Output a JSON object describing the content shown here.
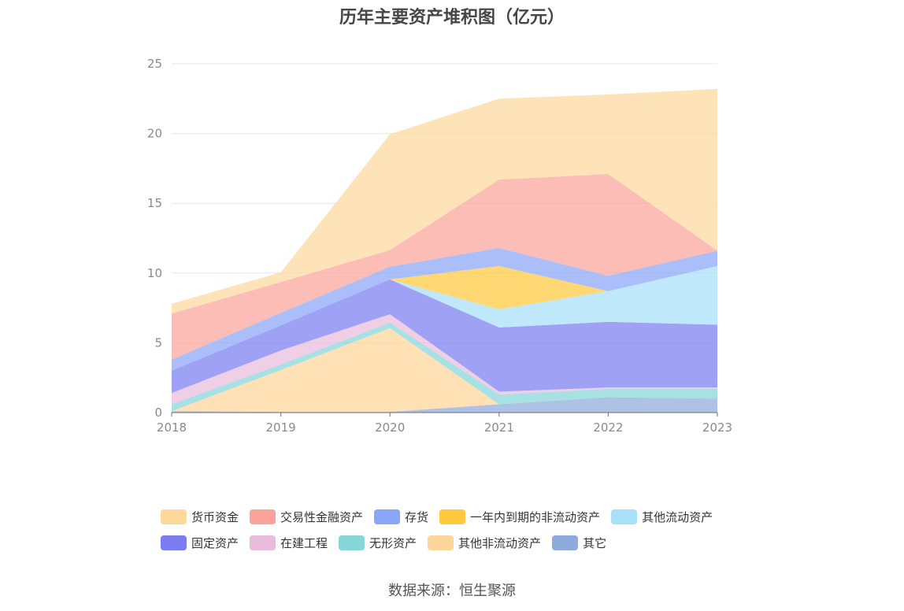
{
  "chart_data": {
    "type": "area",
    "stacked": true,
    "title": "历年主要资产堆积图（亿元）",
    "x": [
      "2018",
      "2019",
      "2020",
      "2021",
      "2022",
      "2023"
    ],
    "ylim": [
      0,
      25
    ],
    "yticks": [
      0,
      5,
      10,
      15,
      20,
      25
    ],
    "grid": true,
    "legend_position": "bottom",
    "series": [
      {
        "name": "其它",
        "color": "#8faadc",
        "values": [
          0.1,
          0.05,
          0.05,
          0.6,
          1.1,
          1.0
        ]
      },
      {
        "name": "其他非流动资产",
        "color": "#ffd699",
        "values": [
          0.0,
          3.0,
          6.0,
          0.0,
          0.0,
          0.0
        ]
      },
      {
        "name": "无形资产",
        "color": "#86d5d8",
        "values": [
          0.5,
          0.4,
          0.4,
          0.7,
          0.6,
          0.7
        ]
      },
      {
        "name": "在建工程",
        "color": "#e9bcdc",
        "values": [
          0.8,
          1.0,
          0.6,
          0.2,
          0.1,
          0.1
        ]
      },
      {
        "name": "固定资产",
        "color": "#7a7ef0",
        "values": [
          1.6,
          1.8,
          2.5,
          4.6,
          4.7,
          4.5
        ]
      },
      {
        "name": "其他流动资产",
        "color": "#a8dff9",
        "values": [
          0.0,
          0.0,
          0.0,
          1.3,
          2.2,
          4.2
        ]
      },
      {
        "name": "一年内到期的非流动资产",
        "color": "#ffc83d",
        "values": [
          0.0,
          0.0,
          0.0,
          3.1,
          0.0,
          0.0
        ]
      },
      {
        "name": "存货",
        "color": "#89a6f8",
        "values": [
          0.8,
          0.9,
          0.9,
          1.3,
          1.1,
          1.1
        ]
      },
      {
        "name": "交易性金融资产",
        "color": "#f9a39a",
        "values": [
          3.3,
          2.2,
          1.2,
          4.9,
          7.3,
          0.0
        ]
      },
      {
        "name": "货币资金",
        "color": "#ffd89c",
        "values": [
          0.7,
          0.7,
          8.3,
          5.8,
          5.7,
          11.6
        ]
      }
    ]
  },
  "legend": {
    "rows": [
      [
        {
          "name": "货币资金",
          "color": "#ffd89c"
        },
        {
          "name": "交易性金融资产",
          "color": "#f9a39a"
        },
        {
          "name": "存货",
          "color": "#89a6f8"
        },
        {
          "name": "一年内到期的非流动资产",
          "color": "#ffc83d"
        },
        {
          "name": "其他流动资产",
          "color": "#a8dff9"
        }
      ],
      [
        {
          "name": "固定资产",
          "color": "#7a7ef0"
        },
        {
          "name": "在建工程",
          "color": "#e9bcdc"
        },
        {
          "name": "无形资产",
          "color": "#86d5d8"
        },
        {
          "name": "其他非流动资产",
          "color": "#ffd699"
        },
        {
          "name": "其它",
          "color": "#8faadc"
        }
      ]
    ]
  },
  "source": "数据来源：恒生聚源"
}
